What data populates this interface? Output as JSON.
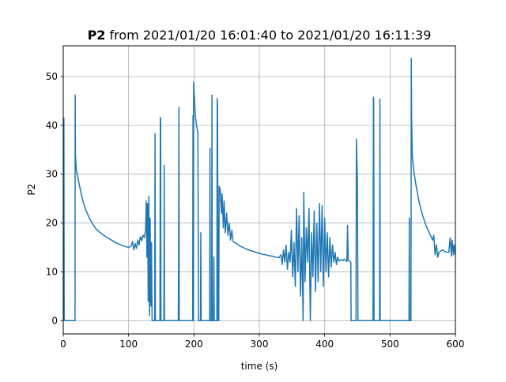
{
  "chart_data": {
    "type": "line",
    "title_bold": "P2",
    "title_rest": " from 2021/01/20 16:01:40 to 2021/01/20 16:11:39",
    "xlabel": "time (s)",
    "ylabel": "P2",
    "xlim": [
      0,
      600
    ],
    "ylim": [
      -2.7,
      56.3
    ],
    "xticks": [
      0,
      100,
      200,
      300,
      400,
      500,
      600
    ],
    "yticks": [
      0,
      10,
      20,
      30,
      40,
      50
    ],
    "grid": true,
    "series": [
      {
        "color": "#1f77b4",
        "points": [
          [
            0,
            41
          ],
          [
            0.5,
            0
          ],
          [
            1,
            41.5
          ],
          [
            1.5,
            0
          ],
          [
            2,
            0
          ],
          [
            18,
            0
          ],
          [
            18.3,
            46.2
          ],
          [
            18.6,
            34
          ],
          [
            20,
            31
          ],
          [
            25,
            27.5
          ],
          [
            30,
            24.5
          ],
          [
            35,
            22.5
          ],
          [
            40,
            21
          ],
          [
            45,
            19.8
          ],
          [
            50,
            18.8
          ],
          [
            55,
            18.2
          ],
          [
            60,
            17.7
          ],
          [
            65,
            17.2
          ],
          [
            70,
            16.8
          ],
          [
            75,
            16.4
          ],
          [
            80,
            16.0
          ],
          [
            85,
            15.7
          ],
          [
            90,
            15.4
          ],
          [
            95,
            15.2
          ],
          [
            100,
            15.0
          ],
          [
            104,
            15.3
          ],
          [
            106,
            16.2
          ],
          [
            108,
            14.5
          ],
          [
            110,
            15.8
          ],
          [
            112,
            14.8
          ],
          [
            114,
            16.5
          ],
          [
            116,
            15.5
          ],
          [
            118,
            17.2
          ],
          [
            120,
            16.4
          ],
          [
            122,
            17.5
          ],
          [
            124,
            17.0
          ],
          [
            126,
            18.5
          ],
          [
            127,
            24.5
          ],
          [
            128,
            13
          ],
          [
            129,
            24
          ],
          [
            130,
            4
          ],
          [
            131,
            25.5
          ],
          [
            132,
            1
          ],
          [
            133,
            21
          ],
          [
            134,
            3
          ],
          [
            135,
            16
          ],
          [
            136,
            0
          ],
          [
            140,
            0
          ],
          [
            140.5,
            38.3
          ],
          [
            141,
            0
          ],
          [
            148,
            0
          ],
          [
            148.5,
            41.6
          ],
          [
            149,
            41.2
          ],
          [
            149.5,
            0
          ],
          [
            154,
            0
          ],
          [
            154.5,
            31.8
          ],
          [
            155,
            0
          ],
          [
            176,
            0
          ],
          [
            176.5,
            12.3
          ],
          [
            177,
            43.7
          ],
          [
            177.5,
            0
          ],
          [
            198,
            0
          ],
          [
            198.5,
            42
          ],
          [
            199,
            0
          ],
          [
            199.5,
            48.9
          ],
          [
            200,
            47.5
          ],
          [
            202,
            42
          ],
          [
            204,
            40
          ],
          [
            206,
            38.5
          ],
          [
            207,
            0
          ],
          [
            210,
            0
          ],
          [
            210.5,
            18
          ],
          [
            211,
            0
          ],
          [
            224,
            0
          ],
          [
            224.5,
            35.3
          ],
          [
            225,
            0
          ],
          [
            227,
            0
          ],
          [
            227.5,
            46.2
          ],
          [
            228,
            0
          ],
          [
            230,
            0
          ],
          [
            230.5,
            13
          ],
          [
            231,
            0
          ],
          [
            235,
            0
          ],
          [
            235.5,
            45.5
          ],
          [
            236,
            44
          ],
          [
            237,
            0
          ],
          [
            238,
            0
          ],
          [
            238.5,
            27.5
          ],
          [
            240,
            27
          ],
          [
            242,
            22
          ],
          [
            243,
            26
          ],
          [
            245,
            19
          ],
          [
            246,
            24.5
          ],
          [
            248,
            18
          ],
          [
            250,
            22
          ],
          [
            252,
            17.5
          ],
          [
            254,
            20
          ],
          [
            256,
            16.5
          ],
          [
            258,
            18.5
          ],
          [
            260,
            16.2
          ],
          [
            265,
            15.8
          ],
          [
            270,
            15.3
          ],
          [
            275,
            15.0
          ],
          [
            280,
            14.7
          ],
          [
            285,
            14.4
          ],
          [
            290,
            14.2
          ],
          [
            295,
            14.0
          ],
          [
            300,
            13.8
          ],
          [
            305,
            13.6
          ],
          [
            310,
            13.5
          ],
          [
            315,
            13.3
          ],
          [
            320,
            13.2
          ],
          [
            325,
            13.0
          ],
          [
            330,
            12.9
          ],
          [
            333,
            13.5
          ],
          [
            335,
            11.5
          ],
          [
            337,
            14.5
          ],
          [
            339,
            12.0
          ],
          [
            341,
            15.5
          ],
          [
            343,
            10.5
          ],
          [
            345,
            14.0
          ],
          [
            347,
            12.0
          ],
          [
            349,
            18.5
          ],
          [
            351,
            9.0
          ],
          [
            353,
            16.0
          ],
          [
            355,
            7.0
          ],
          [
            357,
            23.0
          ],
          [
            359,
            10.0
          ],
          [
            361,
            21.5
          ],
          [
            363,
            5.0
          ],
          [
            365,
            17.0
          ],
          [
            367,
            0
          ],
          [
            368,
            26.3
          ],
          [
            370,
            8.0
          ],
          [
            372,
            19.0
          ],
          [
            374,
            12.0
          ],
          [
            376,
            23.0
          ],
          [
            378,
            0
          ],
          [
            380,
            18.0
          ],
          [
            382,
            9.0
          ],
          [
            384,
            22.5
          ],
          [
            386,
            6.0
          ],
          [
            388,
            20.0
          ],
          [
            390,
            8.0
          ],
          [
            392,
            24.0
          ],
          [
            394,
            10.0
          ],
          [
            396,
            23.5
          ],
          [
            398,
            7.0
          ],
          [
            400,
            21.0
          ],
          [
            402,
            10.0
          ],
          [
            404,
            18.0
          ],
          [
            406,
            9.0
          ],
          [
            408,
            17.0
          ],
          [
            410,
            11.0
          ],
          [
            412,
            15.5
          ],
          [
            414,
            12.0
          ],
          [
            416,
            14.0
          ],
          [
            418,
            11.5
          ],
          [
            420,
            13.0
          ],
          [
            422,
            12.2
          ],
          [
            425,
            12.5
          ],
          [
            428,
            12.3
          ],
          [
            430,
            12.6
          ],
          [
            434,
            12.1
          ],
          [
            435,
            19.5
          ],
          [
            436,
            12.4
          ],
          [
            438,
            12.2
          ],
          [
            440,
            12.0
          ],
          [
            440.5,
            0
          ],
          [
            448,
            0
          ],
          [
            448.5,
            37.2
          ],
          [
            450,
            29
          ],
          [
            451,
            0
          ],
          [
            474,
            0
          ],
          [
            474.5,
            45.8
          ],
          [
            475,
            45.2
          ],
          [
            475.5,
            0
          ],
          [
            484,
            0
          ],
          [
            484.5,
            45.4
          ],
          [
            485,
            0
          ],
          [
            496,
            0
          ],
          [
            506,
            0
          ],
          [
            516,
            0
          ],
          [
            529,
            0
          ],
          [
            529.5,
            21
          ],
          [
            530,
            0
          ],
          [
            532,
            0
          ],
          [
            532.5,
            53.7
          ],
          [
            533,
            42
          ],
          [
            534,
            34
          ],
          [
            536,
            31
          ],
          [
            540,
            27.5
          ],
          [
            545,
            24
          ],
          [
            550,
            21.5
          ],
          [
            555,
            19.5
          ],
          [
            560,
            18
          ],
          [
            565,
            16.5
          ],
          [
            567,
            17.5
          ],
          [
            569,
            13.5
          ],
          [
            571,
            15.5
          ],
          [
            573,
            13
          ],
          [
            575,
            14
          ],
          [
            580,
            14.5
          ],
          [
            585,
            14.1
          ],
          [
            590,
            14
          ],
          [
            592,
            17
          ],
          [
            594,
            13.2
          ],
          [
            595,
            16.5
          ],
          [
            597,
            13.5
          ],
          [
            598,
            15.5
          ],
          [
            600,
            13.4
          ]
        ]
      }
    ]
  }
}
